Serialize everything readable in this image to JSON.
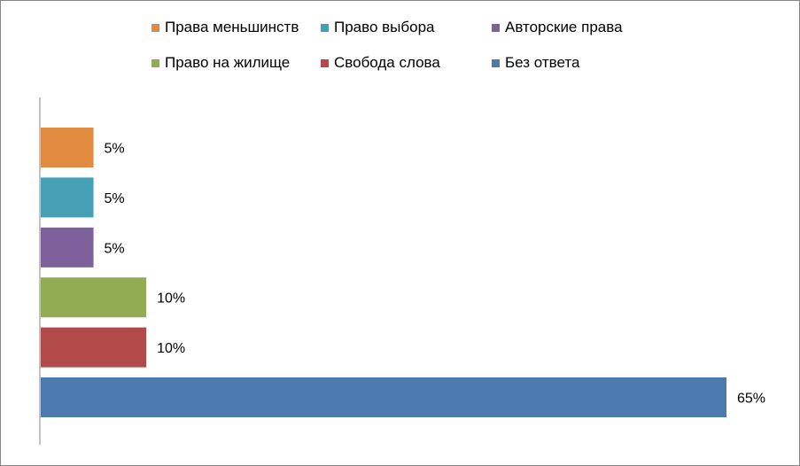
{
  "chart_data": {
    "type": "bar",
    "orientation": "horizontal",
    "categories": [
      "Права меньшинств",
      "Право выбора",
      "Авторские права",
      "Право на жилище",
      "Свобода слова",
      "Без ответа"
    ],
    "values": [
      5,
      5,
      5,
      10,
      10,
      65
    ],
    "data_labels": [
      "5%",
      "5%",
      "5%",
      "10%",
      "10%",
      "65%"
    ],
    "colors": [
      "#E18B41",
      "#45A0B5",
      "#7E619B",
      "#91AC53",
      "#B14A48",
      "#4C79AE"
    ],
    "xlim": [
      0,
      65
    ],
    "grid": false,
    "legend_position": "top",
    "title": "",
    "xlabel": "",
    "ylabel": ""
  }
}
